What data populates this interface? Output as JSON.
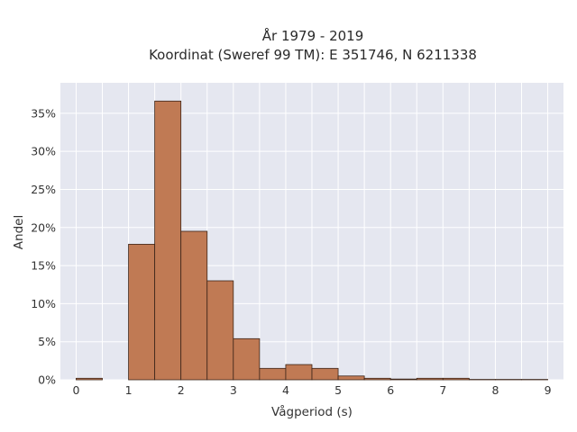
{
  "chart_data": {
    "type": "bar",
    "title_line1": "År 1979 - 2019",
    "title_line2": "Koordinat (Sweref 99 TM): E 351746, N 6211338",
    "xlabel": "Vågperiod (s)",
    "ylabel": "Andel",
    "xlim": [
      -0.3,
      9.3
    ],
    "ylim": [
      0,
      39
    ],
    "xticks": [
      "0",
      "1",
      "2",
      "3",
      "4",
      "5",
      "6",
      "7",
      "8",
      "9"
    ],
    "xtick_values": [
      0,
      1,
      2,
      3,
      4,
      5,
      6,
      7,
      8,
      9
    ],
    "yticks": [
      "0%",
      "5%",
      "10%",
      "15%",
      "20%",
      "25%",
      "30%",
      "35%"
    ],
    "ytick_values": [
      0,
      5,
      10,
      15,
      20,
      25,
      30,
      35
    ],
    "bin_edges": [
      0,
      0.5,
      1,
      1.5,
      2,
      2.5,
      3,
      3.5,
      4,
      4.5,
      5,
      5.5,
      6,
      6.5,
      7,
      7.5,
      8,
      8.5,
      9
    ],
    "values": [
      0.2,
      0,
      17.8,
      36.6,
      19.5,
      13,
      5.4,
      1.5,
      2,
      1.5,
      0.5,
      0.2,
      0.1,
      0.2,
      0.2,
      0.05,
      0.05,
      0.05
    ],
    "grid": true,
    "colors": {
      "bar_fill": "#c07a54",
      "bar_edge": "#3b2418",
      "plot_bg": "#e5e7f0",
      "grid": "#ffffff"
    }
  }
}
